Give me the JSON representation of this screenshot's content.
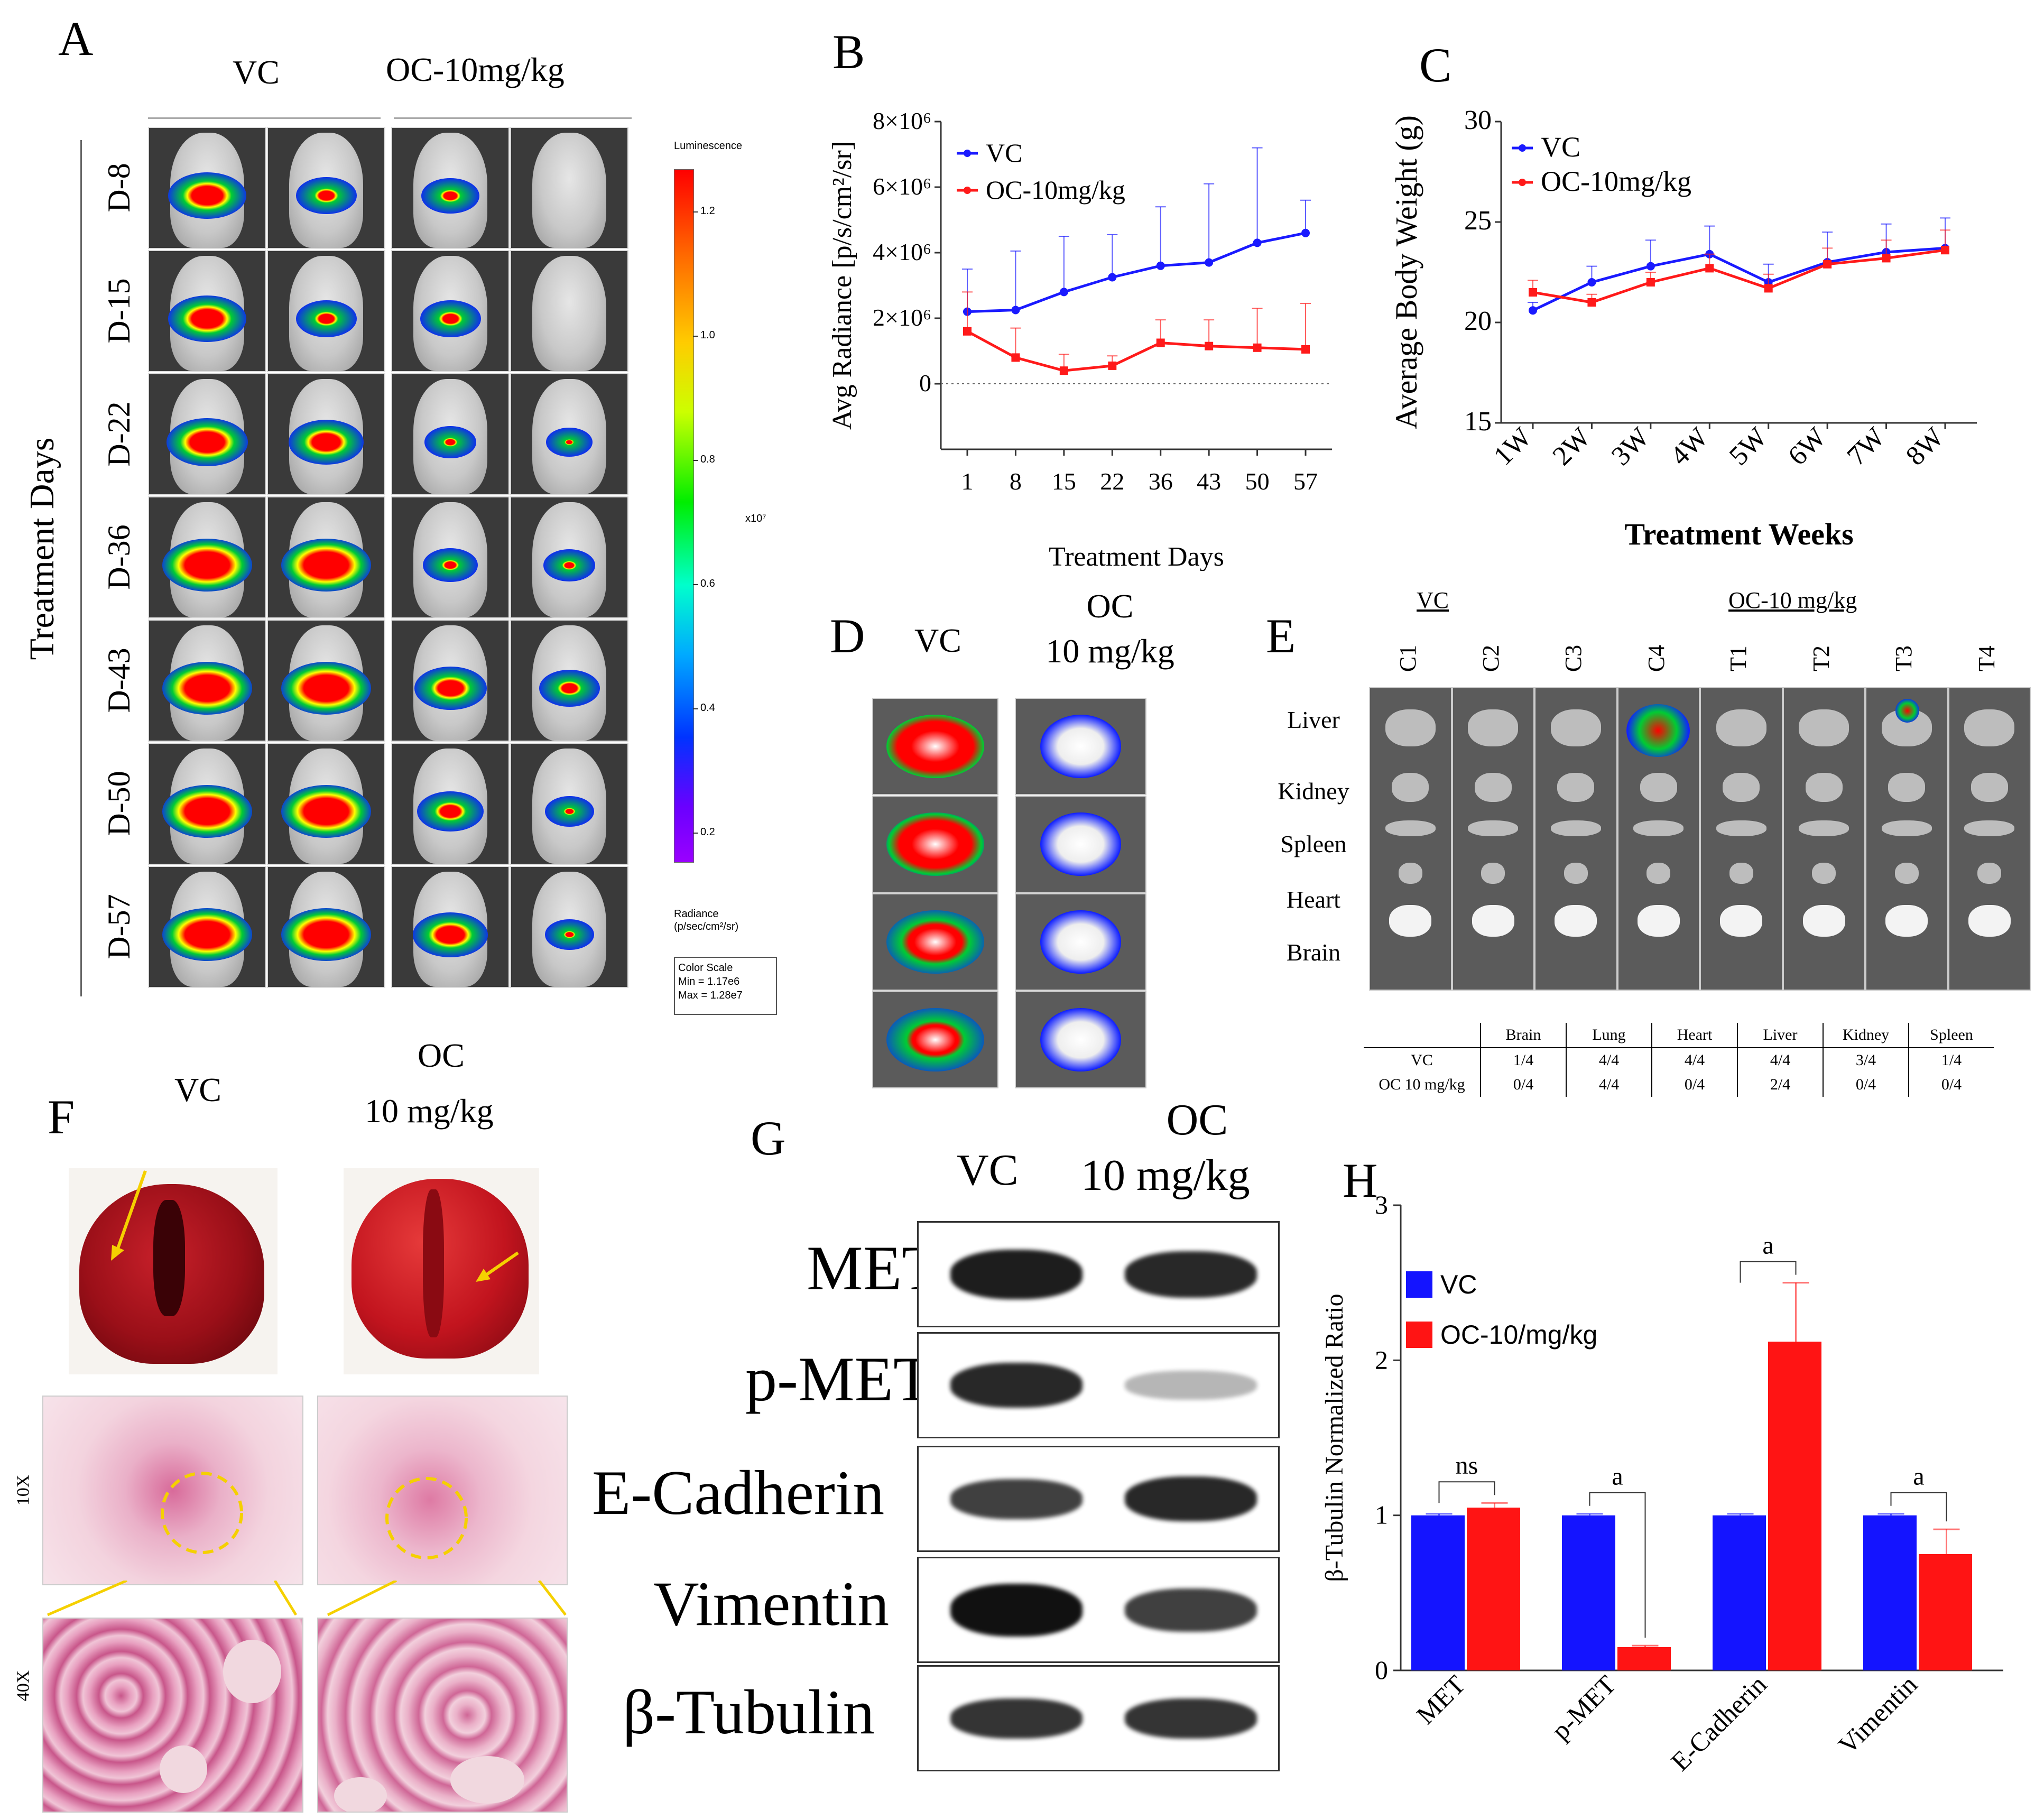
{
  "panels": {
    "A": "A",
    "B": "B",
    "C": "C",
    "D": "D",
    "E": "E",
    "F": "F",
    "G": "G",
    "H": "H"
  },
  "panelA": {
    "group_vc": "VC",
    "group_oc": "OC-10mg/kg",
    "row_axis": "Treatment Days",
    "rows": [
      "D-8",
      "D-15",
      "D-22",
      "D-36",
      "D-43",
      "D-50",
      "D-57"
    ],
    "colorbar": {
      "title": "Luminescence",
      "ticks": [
        "1.2",
        "1.0",
        "0.8",
        "0.6",
        "0.4",
        "0.2"
      ],
      "multiplier": "x10⁷",
      "unit_line1": "Radiance",
      "unit_line2": "(p/sec/cm²/sr)",
      "scale_title": "Color Scale",
      "scale_min": "Min = 1.17e6",
      "scale_max": "Max = 1.28e7"
    },
    "colors": {
      "red": "#ff0000",
      "yellow": "#ffff00",
      "green": "#00cc33",
      "blue": "#1020ff",
      "purple": "#8a2be2"
    }
  },
  "panelD": {
    "vc": "VC",
    "oc_line1": "OC",
    "oc_line2": "10 mg/kg"
  },
  "panelE": {
    "vc": "VC",
    "oc": "OC-10 mg/kg",
    "cols": [
      "C1",
      "C2",
      "C3",
      "C4",
      "T1",
      "T2",
      "T3",
      "T4"
    ],
    "organs": [
      "Liver",
      "Kidney",
      "Spleen",
      "Heart",
      "Brain"
    ],
    "table": {
      "headers": [
        "",
        "Brain",
        "Lung",
        "Heart",
        "Liver",
        "Kidney",
        "Spleen"
      ],
      "rows": [
        [
          "VC",
          "1/4",
          "4/4",
          "4/4",
          "4/4",
          "3/4",
          "1/4"
        ],
        [
          "OC 10 mg/kg",
          "0/4",
          "4/4",
          "0/4",
          "2/4",
          "0/4",
          "0/4"
        ]
      ]
    }
  },
  "panelF": {
    "vc": "VC",
    "oc_line1": "OC",
    "oc_line2": "10 mg/kg",
    "mag1": "10X",
    "mag2": "40X"
  },
  "panelG": {
    "vc": "VC",
    "oc_line1": "OC",
    "oc_line2": "10 mg/kg",
    "proteins": [
      "MET",
      "p-MET",
      "E-Cadherin",
      "Vimentin",
      "β-Tubulin"
    ]
  },
  "chart_data": [
    {
      "id": "B",
      "type": "line",
      "title": "",
      "xlabel": "Treatment Days",
      "ylabel": "Avg Radiance [p/s/cm²/sr]",
      "categories": [
        "1",
        "8",
        "15",
        "22",
        "36",
        "43",
        "50",
        "57"
      ],
      "yticks": [
        "0",
        "2×10⁶",
        "4×10⁶",
        "6×10⁶",
        "8×10⁶"
      ],
      "ylim": [
        -2000000,
        8000000
      ],
      "series": [
        {
          "name": "VC",
          "color": "#1a1aff",
          "values": [
            2200000,
            2250000,
            2800000,
            3250000,
            3600000,
            3700000,
            4300000,
            4600000
          ],
          "errors": [
            1300000,
            1800000,
            1700000,
            1300000,
            1800000,
            2400000,
            2900000,
            1000000
          ]
        },
        {
          "name": "OC-10mg/kg",
          "color": "#ff1a1a",
          "values": [
            1600000,
            800000,
            400000,
            550000,
            1250000,
            1150000,
            1100000,
            1050000
          ],
          "errors": [
            1200000,
            900000,
            500000,
            300000,
            700000,
            800000,
            1200000,
            1400000
          ]
        }
      ],
      "legend": "top-left"
    },
    {
      "id": "C",
      "type": "line",
      "title": "",
      "xlabel": "Treatment Weeks",
      "ylabel": "Average Body Weight (g)",
      "categories": [
        "1W",
        "2W",
        "3W",
        "4W",
        "5W",
        "6W",
        "7W",
        "8W"
      ],
      "yticks": [
        "15",
        "20",
        "25",
        "30"
      ],
      "ylim": [
        15,
        30
      ],
      "series": [
        {
          "name": "VC",
          "color": "#1a1aff",
          "values": [
            20.6,
            22.0,
            22.8,
            23.4,
            22.0,
            23.0,
            23.5,
            23.7
          ],
          "errors": [
            0.4,
            0.8,
            1.3,
            1.4,
            0.9,
            1.5,
            1.4,
            1.5
          ]
        },
        {
          "name": "OC-10mg/kg",
          "color": "#ff1a1a",
          "values": [
            21.5,
            21.0,
            22.0,
            22.7,
            21.7,
            22.9,
            23.2,
            23.6
          ],
          "errors": [
            0.6,
            0.4,
            0.5,
            0.7,
            0.7,
            0.8,
            0.9,
            1.0
          ]
        }
      ],
      "legend": "top-left"
    },
    {
      "id": "H",
      "type": "bar",
      "title": "",
      "xlabel": "",
      "ylabel": "β-Tubulin Normalized Ratio",
      "categories": [
        "MET",
        "p-MET",
        "E-Cadherin",
        "Vimentin"
      ],
      "yticks": [
        "0",
        "1",
        "2",
        "3"
      ],
      "ylim": [
        0,
        3
      ],
      "series": [
        {
          "name": "VC",
          "color": "#1414ff",
          "values": [
            1.0,
            1.0,
            1.0,
            1.0
          ],
          "errors": [
            0.01,
            0.01,
            0.01,
            0.01
          ]
        },
        {
          "name": "OC-10/mg/kg",
          "color": "#ff1414",
          "values": [
            1.05,
            0.15,
            2.12,
            0.75
          ],
          "errors": [
            0.03,
            0.01,
            0.38,
            0.16
          ]
        }
      ],
      "annotations": [
        "ns",
        "a",
        "a",
        "a"
      ],
      "legend": "top-left"
    }
  ]
}
